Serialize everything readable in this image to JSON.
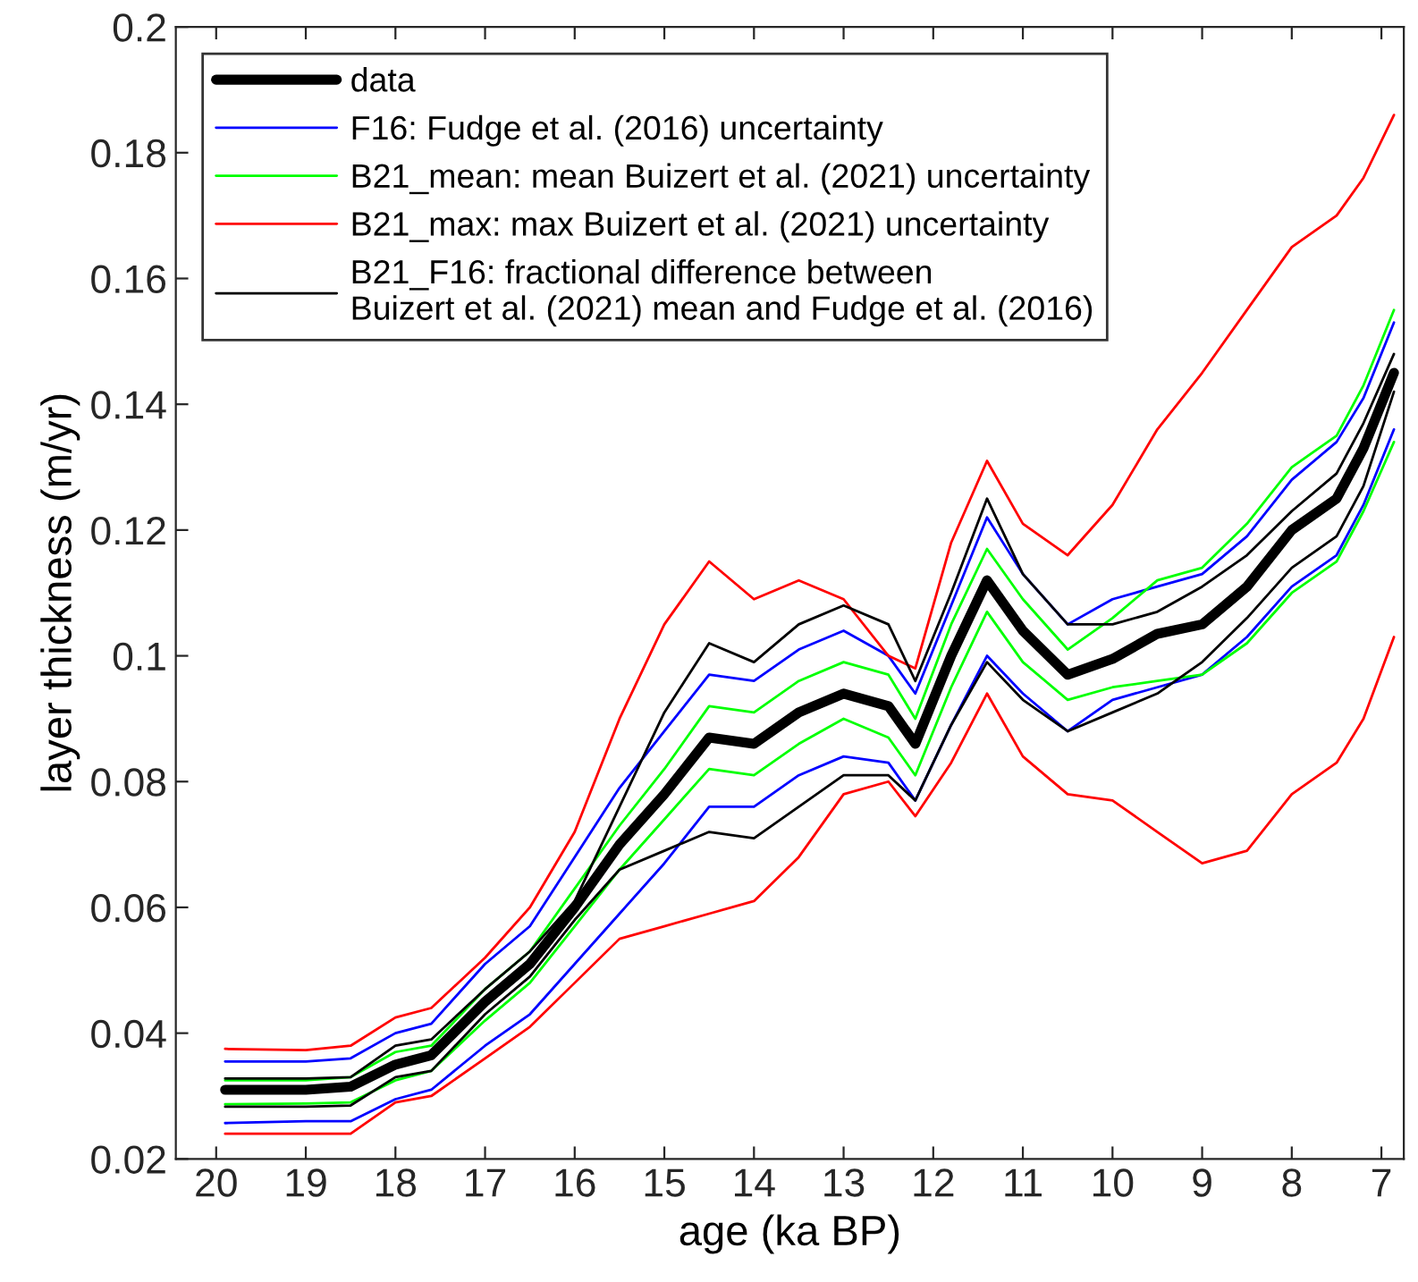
{
  "chart_data": {
    "type": "line",
    "xlabel": "age (ka BP)",
    "ylabel": "layer thickness (m/yr)",
    "x": [
      19.9,
      19,
      18.5,
      18,
      17.6,
      17,
      16.5,
      16,
      15.5,
      15,
      14.5,
      14,
      13.5,
      13,
      12.5,
      12.2,
      11.8,
      11.4,
      11,
      10.5,
      10,
      9.5,
      9,
      8.5,
      8,
      7.5,
      7.2,
      6.86
    ],
    "series": [
      {
        "name": "data",
        "color": "#000000",
        "values": [
          0.031,
          0.031,
          0.0315,
          0.035,
          0.0365,
          0.045,
          0.051,
          0.06,
          0.07,
          0.078,
          0.087,
          0.086,
          0.091,
          0.094,
          0.092,
          0.086,
          0.1,
          0.112,
          0.104,
          0.097,
          0.0995,
          0.1035,
          0.105,
          0.111,
          0.12,
          0.125,
          0.133,
          0.145
        ]
      },
      {
        "name": "F16: Fudge et al. (2016) uncertainty",
        "color": "#0000ff",
        "values": [
          0.0355,
          0.0355,
          0.036,
          0.04,
          0.0415,
          0.051,
          0.057,
          0.068,
          0.079,
          0.088,
          0.097,
          0.096,
          0.101,
          0.104,
          0.1,
          0.094,
          0.108,
          0.122,
          0.113,
          0.105,
          0.109,
          0.111,
          0.113,
          0.119,
          0.128,
          0.134,
          0.141,
          0.153
        ]
      },
      {
        "color": "#0000ff",
        "values": [
          0.0257,
          0.026,
          0.026,
          0.0295,
          0.031,
          0.038,
          0.043,
          0.051,
          0.059,
          0.067,
          0.076,
          0.076,
          0.081,
          0.084,
          0.083,
          0.077,
          0.089,
          0.1,
          0.094,
          0.088,
          0.093,
          0.095,
          0.097,
          0.103,
          0.111,
          0.116,
          0.124,
          0.136
        ]
      },
      {
        "name": "B21_mean: mean Buizert et al. (2021) uncertainty",
        "color": "#00ff00",
        "values": [
          0.0325,
          0.0325,
          0.033,
          0.037,
          0.038,
          0.047,
          0.053,
          0.063,
          0.073,
          0.082,
          0.092,
          0.091,
          0.096,
          0.099,
          0.097,
          0.09,
          0.105,
          0.117,
          0.109,
          0.101,
          0.106,
          0.112,
          0.114,
          0.121,
          0.13,
          0.135,
          0.143,
          0.155
        ]
      },
      {
        "color": "#00ff00",
        "values": [
          0.0287,
          0.0288,
          0.029,
          0.0325,
          0.034,
          0.042,
          0.048,
          0.057,
          0.066,
          0.074,
          0.082,
          0.081,
          0.086,
          0.09,
          0.087,
          0.081,
          0.095,
          0.107,
          0.099,
          0.093,
          0.095,
          0.096,
          0.097,
          0.102,
          0.11,
          0.115,
          0.123,
          0.134
        ]
      },
      {
        "name": "B21_max: max Buizert et al. (2021) uncertainty",
        "color": "#ff0000",
        "values": [
          0.0375,
          0.0373,
          0.038,
          0.0425,
          0.044,
          0.052,
          0.06,
          0.072,
          0.09,
          0.105,
          0.115,
          0.109,
          0.112,
          0.109,
          0.1,
          0.098,
          0.118,
          0.131,
          0.121,
          0.116,
          0.124,
          0.136,
          0.145,
          0.155,
          0.165,
          0.17,
          0.176,
          0.186
        ]
      },
      {
        "color": "#ff0000",
        "values": [
          0.024,
          0.024,
          0.024,
          0.029,
          0.03,
          0.036,
          0.041,
          0.048,
          0.055,
          0.057,
          0.059,
          0.061,
          0.068,
          0.078,
          0.08,
          0.0745,
          0.083,
          0.094,
          0.084,
          0.078,
          0.077,
          0.072,
          0.067,
          0.069,
          0.078,
          0.083,
          0.09,
          0.103
        ]
      },
      {
        "name": "B21_F16: fractional difference between\nBuizert et al. (2021) mean and Fudge et al. (2016)",
        "color": "#000000",
        "values": [
          0.0328,
          0.0328,
          0.033,
          0.038,
          0.039,
          0.047,
          0.053,
          0.061,
          0.076,
          0.091,
          0.102,
          0.099,
          0.105,
          0.108,
          0.105,
          0.096,
          0.11,
          0.125,
          0.113,
          0.105,
          0.105,
          0.107,
          0.111,
          0.116,
          0.123,
          0.129,
          0.137,
          0.148
        ]
      },
      {
        "color": "#000000",
        "values": [
          0.0283,
          0.0283,
          0.0285,
          0.033,
          0.034,
          0.043,
          0.049,
          0.058,
          0.066,
          0.069,
          0.072,
          0.071,
          0.076,
          0.081,
          0.081,
          0.077,
          0.089,
          0.099,
          0.093,
          0.088,
          0.091,
          0.094,
          0.099,
          0.106,
          0.114,
          0.119,
          0.127,
          0.142
        ]
      }
    ],
    "xlim": [
      20.45,
      6.75
    ],
    "xticks": [
      20,
      19,
      18,
      17,
      16,
      15,
      14,
      13,
      12,
      11,
      10,
      9,
      8,
      7
    ],
    "ylim": [
      0.02,
      0.2
    ],
    "yticks": [
      0.02,
      0.04,
      0.06,
      0.08,
      0.1,
      0.12,
      0.14,
      0.16,
      0.18,
      0.2
    ],
    "grid": false,
    "legend": "top left",
    "line_style": "solid",
    "marker": "none"
  }
}
